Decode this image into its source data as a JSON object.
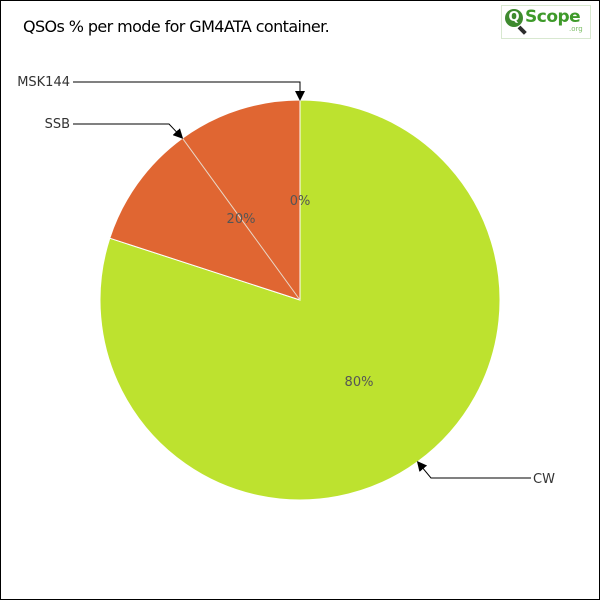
{
  "chart_data": {
    "type": "pie",
    "title": "QSOs % per mode for GM4ATA container.",
    "categories": [
      "CW",
      "SSB",
      "MSK144"
    ],
    "values": [
      80,
      20,
      0
    ],
    "value_labels": [
      "80%",
      "20%",
      "0%"
    ],
    "colors": [
      "#bde22f",
      "#e06632",
      "#e06632"
    ],
    "legend": "none"
  },
  "logo": {
    "text": "Scope",
    "subtext": ".org",
    "letter": "Q"
  }
}
